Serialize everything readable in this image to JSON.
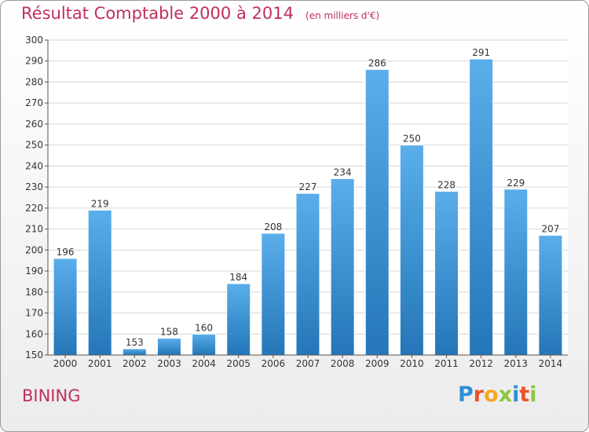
{
  "header": {
    "title": "Résultat Comptable 2000 à 2014",
    "subtitle": "(en milliers d'€)"
  },
  "footer": {
    "commune": "BINING",
    "brand_letters": [
      "P",
      "r",
      "o",
      "x",
      "i",
      "t",
      "i"
    ],
    "brand_colors": [
      "#2e8fd6",
      "#e8552b",
      "#f5a623",
      "#8cc63f",
      "#2e8fd6",
      "#e8552b",
      "#8cc63f"
    ]
  },
  "chart_data": {
    "type": "bar",
    "categories": [
      "2000",
      "2001",
      "2002",
      "2003",
      "2004",
      "2005",
      "2006",
      "2007",
      "2008",
      "2009",
      "2010",
      "2011",
      "2012",
      "2013",
      "2014"
    ],
    "values": [
      196,
      219,
      153,
      158,
      160,
      184,
      208,
      227,
      234,
      286,
      250,
      228,
      291,
      229,
      207
    ],
    "title": "Résultat Comptable 2000 à 2014",
    "ylim": [
      150,
      300
    ],
    "yticks": [
      150,
      160,
      170,
      180,
      190,
      200,
      210,
      220,
      230,
      240,
      250,
      260,
      270,
      280,
      290,
      300
    ],
    "grid": true,
    "bar_color_top": "#5aaeea",
    "bar_color_bottom": "#2476b8",
    "title_color": "#c0305a"
  }
}
